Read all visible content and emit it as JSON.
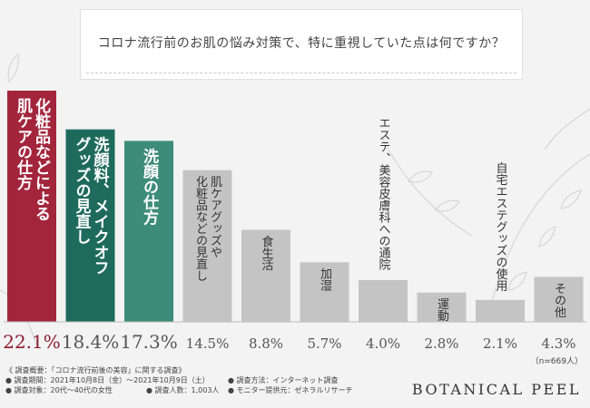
{
  "page_title": "コロナ流行前のお肌の悩み対策で、特に重視していた点は何ですか？",
  "brand": "BOTANICAL PEEL",
  "sample_note": "（n=669人）",
  "footer": {
    "overview": "《 調査概要：「コロナ流行前後の美容」に関する調査》",
    "period": "● 調査期間：2021年10月8日（金）〜2021年10月9日（土）",
    "method": "● 調査方法：インターネット調査",
    "target": "● 調査対象：20代〜40代の女性",
    "count": "● 調査人数：1,003人",
    "provider": "● モニター提供元：ゼネラルリサーチ"
  },
  "colors": {
    "rank1": "#a3253c",
    "rank2": "#1e6b5c",
    "rank3": "#3d8c79",
    "other": "#c4c4c4",
    "value_top": "#8c1a2e",
    "value_other": "#555555"
  },
  "chart_data": {
    "type": "bar",
    "title": "コロナ流行前のお肌の悩み対策で、特に重視していた点は何ですか？",
    "xlabel": "",
    "ylabel": "",
    "unit": "%",
    "ylim": [
      0,
      22.1
    ],
    "grid": false,
    "categories": [
      "化粧品などによる肌ケアの仕方",
      "洗顔料、メイクオフグッズの見直し",
      "洗顔の仕方",
      "肌ケアグッズや化粧品などの見直し",
      "食生活",
      "加湿",
      "エステ、美容皮膚科への通院",
      "運動",
      "自宅エステグッズの使用",
      "その他"
    ],
    "labels_vertical": [
      [
        "化粧品などによる",
        "肌ケアの仕方"
      ],
      [
        "洗顔料、メイクオフ",
        "グッズの見直し"
      ],
      [
        "洗顔の仕方"
      ],
      [
        "肌ケアグッズや",
        "化粧品などの見直し"
      ],
      [
        "食生活"
      ],
      [
        "加湿"
      ],
      [
        "エステ、美容皮膚科への通院"
      ],
      [
        "運動"
      ],
      [
        "自宅エステグッズの使用"
      ],
      [
        "その他"
      ]
    ],
    "values": [
      22.1,
      18.4,
      17.3,
      14.5,
      8.8,
      5.7,
      4.0,
      2.8,
      2.1,
      4.3
    ],
    "value_labels": [
      "22.1%",
      "18.4%",
      "17.3%",
      "14.5%",
      "8.8%",
      "5.7%",
      "4.0%",
      "2.8%",
      "2.1%",
      "4.3%"
    ]
  }
}
